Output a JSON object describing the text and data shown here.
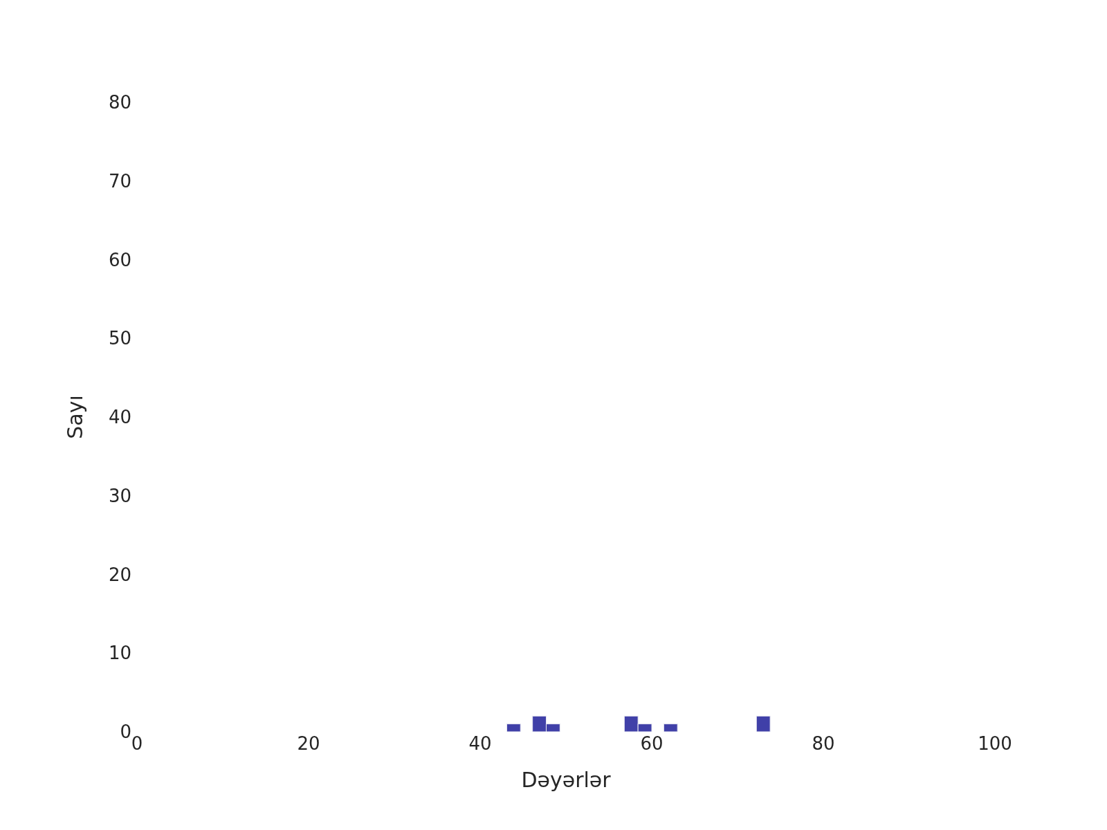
{
  "chart_data": {
    "type": "bar",
    "xlabel": "Dəyərlər",
    "ylabel": "Sayı",
    "x": [
      43.9,
      46.9,
      48.5,
      57.6,
      59.2,
      62.2,
      73.0
    ],
    "values": [
      1,
      2,
      1,
      2,
      1,
      1,
      2
    ],
    "color": "#4040a8",
    "xlim": [
      0,
      100
    ],
    "xticks": [
      0,
      20,
      40,
      60,
      80,
      100
    ],
    "ylim": [
      0,
      80
    ],
    "yticks": [
      0,
      10,
      20,
      30,
      40,
      50,
      60,
      70,
      80
    ],
    "grid": false
  }
}
